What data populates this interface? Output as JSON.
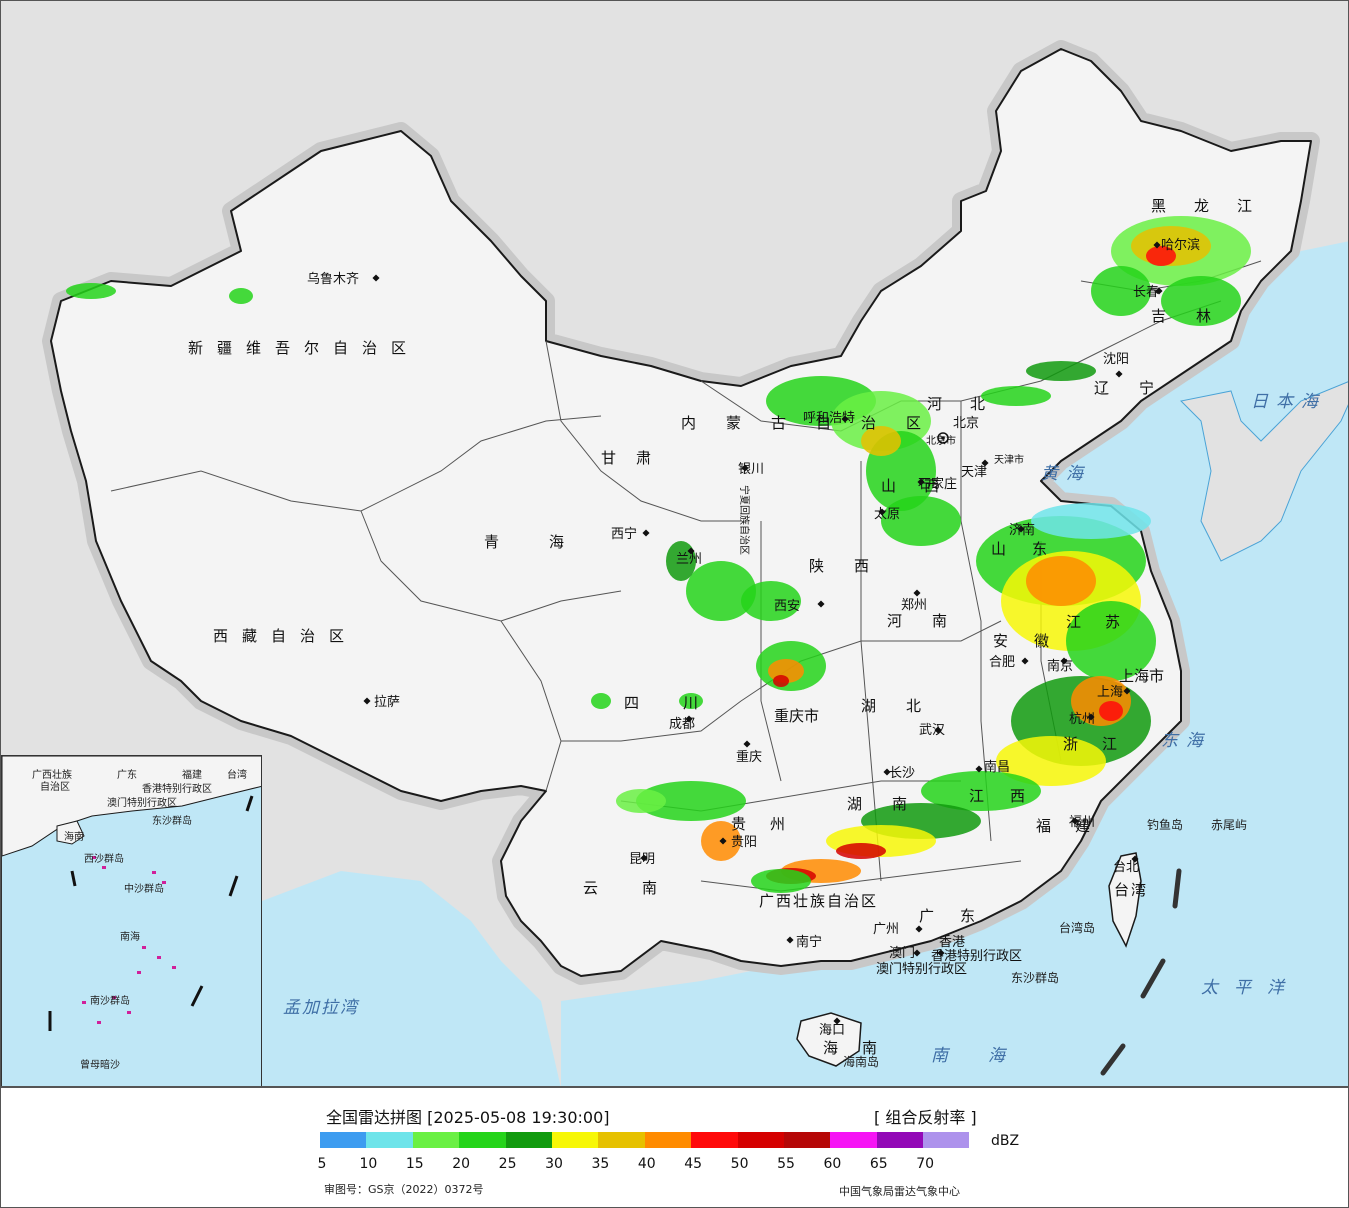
{
  "map": {
    "provinces": [
      "新疆维吾尔自治区",
      "西藏自治区",
      "青海",
      "甘肃",
      "四川",
      "云南",
      "内蒙古自治区",
      "黑龙江",
      "吉林",
      "辽宁",
      "河北",
      "山西",
      "陕西",
      "河南",
      "湖北",
      "湖南",
      "广东",
      "广西壮族自治区",
      "贵州",
      "江苏",
      "安徽",
      "浙江",
      "江西",
      "福建",
      "山东",
      "海南",
      "台湾",
      "宁夏回族自治区"
    ],
    "cities": [
      "乌鲁木齐",
      "西宁",
      "兰州",
      "银川",
      "拉萨",
      "成都",
      "重庆",
      "昆明",
      "贵阳",
      "南宁",
      "广州",
      "澳门",
      "香港",
      "长沙",
      "武汉",
      "南昌",
      "福州",
      "台北",
      "杭州",
      "上海",
      "南京",
      "合肥",
      "郑州",
      "济南",
      "石家庄",
      "太原",
      "西安",
      "呼和浩特",
      "北京",
      "天津",
      "沈阳",
      "长春",
      "哈尔滨",
      "海口"
    ],
    "municipalities": [
      "重庆市",
      "上海市",
      "北京市",
      "天津市"
    ],
    "special_regions": [
      "香港特别行政区",
      "澳门特别行政区"
    ],
    "seas": [
      "日本海",
      "黄海",
      "东海",
      "太平洋",
      "南海",
      "孟加拉湾"
    ],
    "islands": [
      "钓鱼岛",
      "赤尾屿",
      "台湾岛",
      "东沙群岛",
      "海南岛"
    ],
    "inset": {
      "labels": [
        "广西壮族",
        "自治区",
        "广东",
        "福建",
        "台湾",
        "香港特别行政区",
        "澳门特别行政区",
        "海南",
        "东沙群岛",
        "西沙群岛",
        "中沙群岛",
        "南海",
        "南沙群岛",
        "曾母暗沙"
      ]
    },
    "colors": {
      "background": "#e2e2e2",
      "land": "#f4f4f4",
      "sea": "#bfe7f6",
      "border": "#1a1a1a"
    }
  },
  "legend": {
    "title": "全国雷达拼图 [2025-05-08 19:30:00]",
    "product": "[ 组合反射率 ]",
    "unit": "dBZ",
    "ticks": [
      "5",
      "10",
      "15",
      "20",
      "25",
      "30",
      "35",
      "40",
      "45",
      "50",
      "55",
      "60",
      "65",
      "70"
    ],
    "colors": [
      "#3d9cf0",
      "#6ee4ea",
      "#6af044",
      "#25d41a",
      "#119a0e",
      "#f7f707",
      "#e6c100",
      "#ff8b00",
      "#ff0a0a",
      "#d50000",
      "#b50707",
      "#f614f5",
      "#9308b7",
      "#ad92ec"
    ],
    "approval": "审图号：GS京（2022）0372号",
    "source": "中国气象局雷达气象中心"
  }
}
